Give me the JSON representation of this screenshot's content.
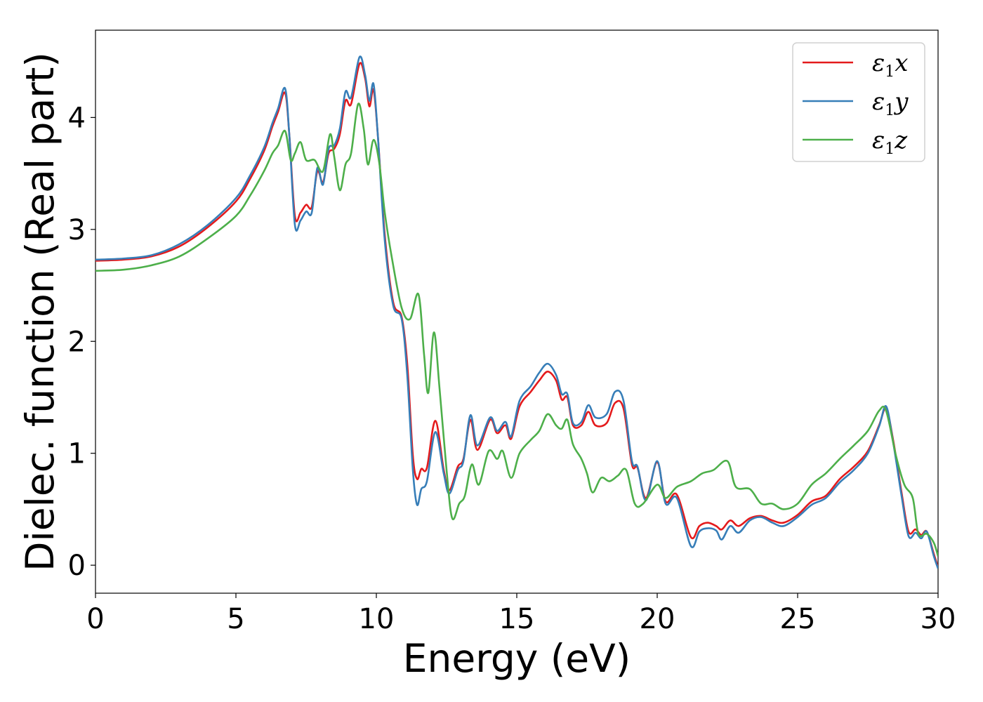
{
  "chart_data": {
    "type": "line",
    "xlabel": "Energy (eV)",
    "ylabel": "Dielec. function (Real part)",
    "xlim": [
      0,
      30
    ],
    "ylim": [
      -0.25,
      4.78
    ],
    "xticks": [
      "0",
      "5",
      "10",
      "15",
      "20",
      "25",
      "30"
    ],
    "yticks": [
      "0",
      "1",
      "2",
      "3",
      "4"
    ],
    "grid": false,
    "legend_position": "top-right",
    "series": [
      {
        "name": "ε1x",
        "legend_base": "ε",
        "legend_sub": "1",
        "legend_var": "x",
        "color": "#e41a1c",
        "points": [
          [
            0,
            2.72
          ],
          [
            1,
            2.73
          ],
          [
            2,
            2.76
          ],
          [
            3,
            2.85
          ],
          [
            4,
            3.02
          ],
          [
            5,
            3.25
          ],
          [
            5.5,
            3.45
          ],
          [
            6,
            3.7
          ],
          [
            6.3,
            3.92
          ],
          [
            6.5,
            4.05
          ],
          [
            6.75,
            4.22
          ],
          [
            6.9,
            3.85
          ],
          [
            7.1,
            3.12
          ],
          [
            7.3,
            3.15
          ],
          [
            7.5,
            3.22
          ],
          [
            7.7,
            3.2
          ],
          [
            7.9,
            3.52
          ],
          [
            8.1,
            3.42
          ],
          [
            8.3,
            3.68
          ],
          [
            8.5,
            3.72
          ],
          [
            8.7,
            3.85
          ],
          [
            8.9,
            4.15
          ],
          [
            9.1,
            4.12
          ],
          [
            9.4,
            4.48
          ],
          [
            9.6,
            4.35
          ],
          [
            9.75,
            4.1
          ],
          [
            9.9,
            4.25
          ],
          [
            10.05,
            3.85
          ],
          [
            10.3,
            2.95
          ],
          [
            10.6,
            2.35
          ],
          [
            10.9,
            2.22
          ],
          [
            11.1,
            1.8
          ],
          [
            11.3,
            0.98
          ],
          [
            11.45,
            0.77
          ],
          [
            11.6,
            0.86
          ],
          [
            11.8,
            0.87
          ],
          [
            12.1,
            1.29
          ],
          [
            12.4,
            0.85
          ],
          [
            12.6,
            0.67
          ],
          [
            12.9,
            0.88
          ],
          [
            13.1,
            0.95
          ],
          [
            13.35,
            1.3
          ],
          [
            13.6,
            1.03
          ],
          [
            14.05,
            1.3
          ],
          [
            14.3,
            1.18
          ],
          [
            14.6,
            1.25
          ],
          [
            14.8,
            1.13
          ],
          [
            15.1,
            1.42
          ],
          [
            15.5,
            1.55
          ],
          [
            15.8,
            1.65
          ],
          [
            16.1,
            1.73
          ],
          [
            16.4,
            1.65
          ],
          [
            16.6,
            1.48
          ],
          [
            16.8,
            1.5
          ],
          [
            17,
            1.25
          ],
          [
            17.3,
            1.25
          ],
          [
            17.55,
            1.37
          ],
          [
            17.8,
            1.25
          ],
          [
            18.2,
            1.27
          ],
          [
            18.5,
            1.45
          ],
          [
            18.8,
            1.4
          ],
          [
            19.1,
            0.9
          ],
          [
            19.3,
            0.87
          ],
          [
            19.6,
            0.6
          ],
          [
            20,
            0.92
          ],
          [
            20.3,
            0.57
          ],
          [
            20.7,
            0.63
          ],
          [
            21.2,
            0.25
          ],
          [
            21.5,
            0.35
          ],
          [
            21.8,
            0.38
          ],
          [
            22.1,
            0.35
          ],
          [
            22.3,
            0.32
          ],
          [
            22.6,
            0.4
          ],
          [
            22.9,
            0.35
          ],
          [
            23.3,
            0.42
          ],
          [
            23.7,
            0.44
          ],
          [
            24.1,
            0.4
          ],
          [
            24.5,
            0.38
          ],
          [
            25,
            0.45
          ],
          [
            25.5,
            0.57
          ],
          [
            26,
            0.62
          ],
          [
            26.5,
            0.77
          ],
          [
            27,
            0.88
          ],
          [
            27.5,
            1.02
          ],
          [
            27.9,
            1.25
          ],
          [
            28.15,
            1.4
          ],
          [
            28.4,
            1.12
          ],
          [
            28.7,
            0.65
          ],
          [
            28.95,
            0.3
          ],
          [
            29.2,
            0.32
          ],
          [
            29.4,
            0.27
          ],
          [
            29.6,
            0.3
          ],
          [
            29.85,
            0.1
          ],
          [
            30,
            -0.02
          ]
        ]
      },
      {
        "name": "ε1y",
        "legend_base": "ε",
        "legend_sub": "1",
        "legend_var": "y",
        "color": "#377eb8",
        "points": [
          [
            0,
            2.73
          ],
          [
            1,
            2.74
          ],
          [
            2,
            2.77
          ],
          [
            3,
            2.87
          ],
          [
            4,
            3.04
          ],
          [
            5,
            3.28
          ],
          [
            5.5,
            3.48
          ],
          [
            6,
            3.73
          ],
          [
            6.3,
            3.95
          ],
          [
            6.5,
            4.08
          ],
          [
            6.75,
            4.26
          ],
          [
            6.9,
            3.85
          ],
          [
            7.1,
            3.04
          ],
          [
            7.3,
            3.08
          ],
          [
            7.5,
            3.16
          ],
          [
            7.7,
            3.15
          ],
          [
            7.9,
            3.55
          ],
          [
            8.1,
            3.4
          ],
          [
            8.3,
            3.72
          ],
          [
            8.5,
            3.75
          ],
          [
            8.7,
            3.9
          ],
          [
            8.9,
            4.23
          ],
          [
            9.1,
            4.18
          ],
          [
            9.4,
            4.54
          ],
          [
            9.6,
            4.38
          ],
          [
            9.75,
            4.15
          ],
          [
            9.9,
            4.3
          ],
          [
            10.05,
            3.85
          ],
          [
            10.3,
            2.9
          ],
          [
            10.6,
            2.32
          ],
          [
            10.9,
            2.2
          ],
          [
            11.1,
            1.7
          ],
          [
            11.3,
            0.85
          ],
          [
            11.45,
            0.54
          ],
          [
            11.6,
            0.68
          ],
          [
            11.8,
            0.75
          ],
          [
            12.1,
            1.19
          ],
          [
            12.4,
            0.82
          ],
          [
            12.6,
            0.64
          ],
          [
            12.9,
            0.85
          ],
          [
            13.1,
            0.93
          ],
          [
            13.35,
            1.34
          ],
          [
            13.6,
            1.07
          ],
          [
            14.05,
            1.32
          ],
          [
            14.3,
            1.2
          ],
          [
            14.6,
            1.28
          ],
          [
            14.8,
            1.15
          ],
          [
            15.1,
            1.47
          ],
          [
            15.5,
            1.6
          ],
          [
            15.8,
            1.72
          ],
          [
            16.1,
            1.8
          ],
          [
            16.4,
            1.7
          ],
          [
            16.6,
            1.53
          ],
          [
            16.8,
            1.53
          ],
          [
            17,
            1.27
          ],
          [
            17.3,
            1.28
          ],
          [
            17.55,
            1.43
          ],
          [
            17.8,
            1.32
          ],
          [
            18.2,
            1.35
          ],
          [
            18.5,
            1.55
          ],
          [
            18.8,
            1.47
          ],
          [
            19.1,
            0.93
          ],
          [
            19.3,
            0.88
          ],
          [
            19.6,
            0.58
          ],
          [
            20,
            0.93
          ],
          [
            20.3,
            0.55
          ],
          [
            20.7,
            0.6
          ],
          [
            21.2,
            0.17
          ],
          [
            21.5,
            0.3
          ],
          [
            21.8,
            0.33
          ],
          [
            22.1,
            0.31
          ],
          [
            22.3,
            0.23
          ],
          [
            22.6,
            0.35
          ],
          [
            22.9,
            0.29
          ],
          [
            23.3,
            0.4
          ],
          [
            23.7,
            0.43
          ],
          [
            24.1,
            0.38
          ],
          [
            24.5,
            0.35
          ],
          [
            25,
            0.43
          ],
          [
            25.5,
            0.54
          ],
          [
            26,
            0.6
          ],
          [
            26.5,
            0.74
          ],
          [
            27,
            0.85
          ],
          [
            27.5,
            1.0
          ],
          [
            27.9,
            1.24
          ],
          [
            28.15,
            1.42
          ],
          [
            28.4,
            1.1
          ],
          [
            28.7,
            0.62
          ],
          [
            28.95,
            0.26
          ],
          [
            29.2,
            0.29
          ],
          [
            29.4,
            0.24
          ],
          [
            29.6,
            0.3
          ],
          [
            29.85,
            0.08
          ],
          [
            30,
            -0.03
          ]
        ]
      },
      {
        "name": "ε1z",
        "legend_base": "ε",
        "legend_sub": "1",
        "legend_var": "z",
        "color": "#4daf4a",
        "points": [
          [
            0,
            2.63
          ],
          [
            1,
            2.64
          ],
          [
            2,
            2.68
          ],
          [
            3,
            2.76
          ],
          [
            4,
            2.92
          ],
          [
            5,
            3.12
          ],
          [
            5.5,
            3.3
          ],
          [
            6,
            3.52
          ],
          [
            6.3,
            3.68
          ],
          [
            6.5,
            3.75
          ],
          [
            6.75,
            3.88
          ],
          [
            6.95,
            3.62
          ],
          [
            7.1,
            3.68
          ],
          [
            7.3,
            3.78
          ],
          [
            7.5,
            3.62
          ],
          [
            7.8,
            3.62
          ],
          [
            8.1,
            3.52
          ],
          [
            8.35,
            3.85
          ],
          [
            8.5,
            3.65
          ],
          [
            8.7,
            3.35
          ],
          [
            8.9,
            3.58
          ],
          [
            9.1,
            3.68
          ],
          [
            9.35,
            4.12
          ],
          [
            9.55,
            3.9
          ],
          [
            9.7,
            3.58
          ],
          [
            9.9,
            3.8
          ],
          [
            10.1,
            3.6
          ],
          [
            10.3,
            3.15
          ],
          [
            10.55,
            2.75
          ],
          [
            10.9,
            2.3
          ],
          [
            11.2,
            2.2
          ],
          [
            11.5,
            2.42
          ],
          [
            11.7,
            1.88
          ],
          [
            11.85,
            1.54
          ],
          [
            12.05,
            2.08
          ],
          [
            12.25,
            1.58
          ],
          [
            12.5,
            0.85
          ],
          [
            12.7,
            0.42
          ],
          [
            12.95,
            0.55
          ],
          [
            13.15,
            0.62
          ],
          [
            13.4,
            0.9
          ],
          [
            13.65,
            0.72
          ],
          [
            14,
            1.02
          ],
          [
            14.3,
            0.95
          ],
          [
            14.5,
            1.02
          ],
          [
            14.8,
            0.78
          ],
          [
            15.1,
            1.0
          ],
          [
            15.5,
            1.12
          ],
          [
            15.8,
            1.2
          ],
          [
            16.1,
            1.35
          ],
          [
            16.4,
            1.25
          ],
          [
            16.6,
            1.22
          ],
          [
            16.8,
            1.3
          ],
          [
            17,
            1.08
          ],
          [
            17.3,
            0.95
          ],
          [
            17.5,
            0.82
          ],
          [
            17.7,
            0.65
          ],
          [
            18,
            0.78
          ],
          [
            18.3,
            0.75
          ],
          [
            18.6,
            0.8
          ],
          [
            18.9,
            0.85
          ],
          [
            19.2,
            0.55
          ],
          [
            19.5,
            0.55
          ],
          [
            20,
            0.72
          ],
          [
            20.3,
            0.6
          ],
          [
            20.7,
            0.7
          ],
          [
            21.2,
            0.75
          ],
          [
            21.6,
            0.82
          ],
          [
            22,
            0.85
          ],
          [
            22.5,
            0.93
          ],
          [
            22.8,
            0.7
          ],
          [
            23.3,
            0.68
          ],
          [
            23.7,
            0.55
          ],
          [
            24.1,
            0.55
          ],
          [
            24.5,
            0.5
          ],
          [
            25,
            0.55
          ],
          [
            25.5,
            0.72
          ],
          [
            26,
            0.82
          ],
          [
            26.5,
            0.95
          ],
          [
            27,
            1.07
          ],
          [
            27.5,
            1.2
          ],
          [
            27.9,
            1.38
          ],
          [
            28.15,
            1.38
          ],
          [
            28.5,
            0.98
          ],
          [
            28.8,
            0.72
          ],
          [
            29.1,
            0.6
          ],
          [
            29.3,
            0.28
          ],
          [
            29.6,
            0.28
          ],
          [
            29.85,
            0.2
          ],
          [
            30,
            0.08
          ]
        ]
      }
    ]
  }
}
